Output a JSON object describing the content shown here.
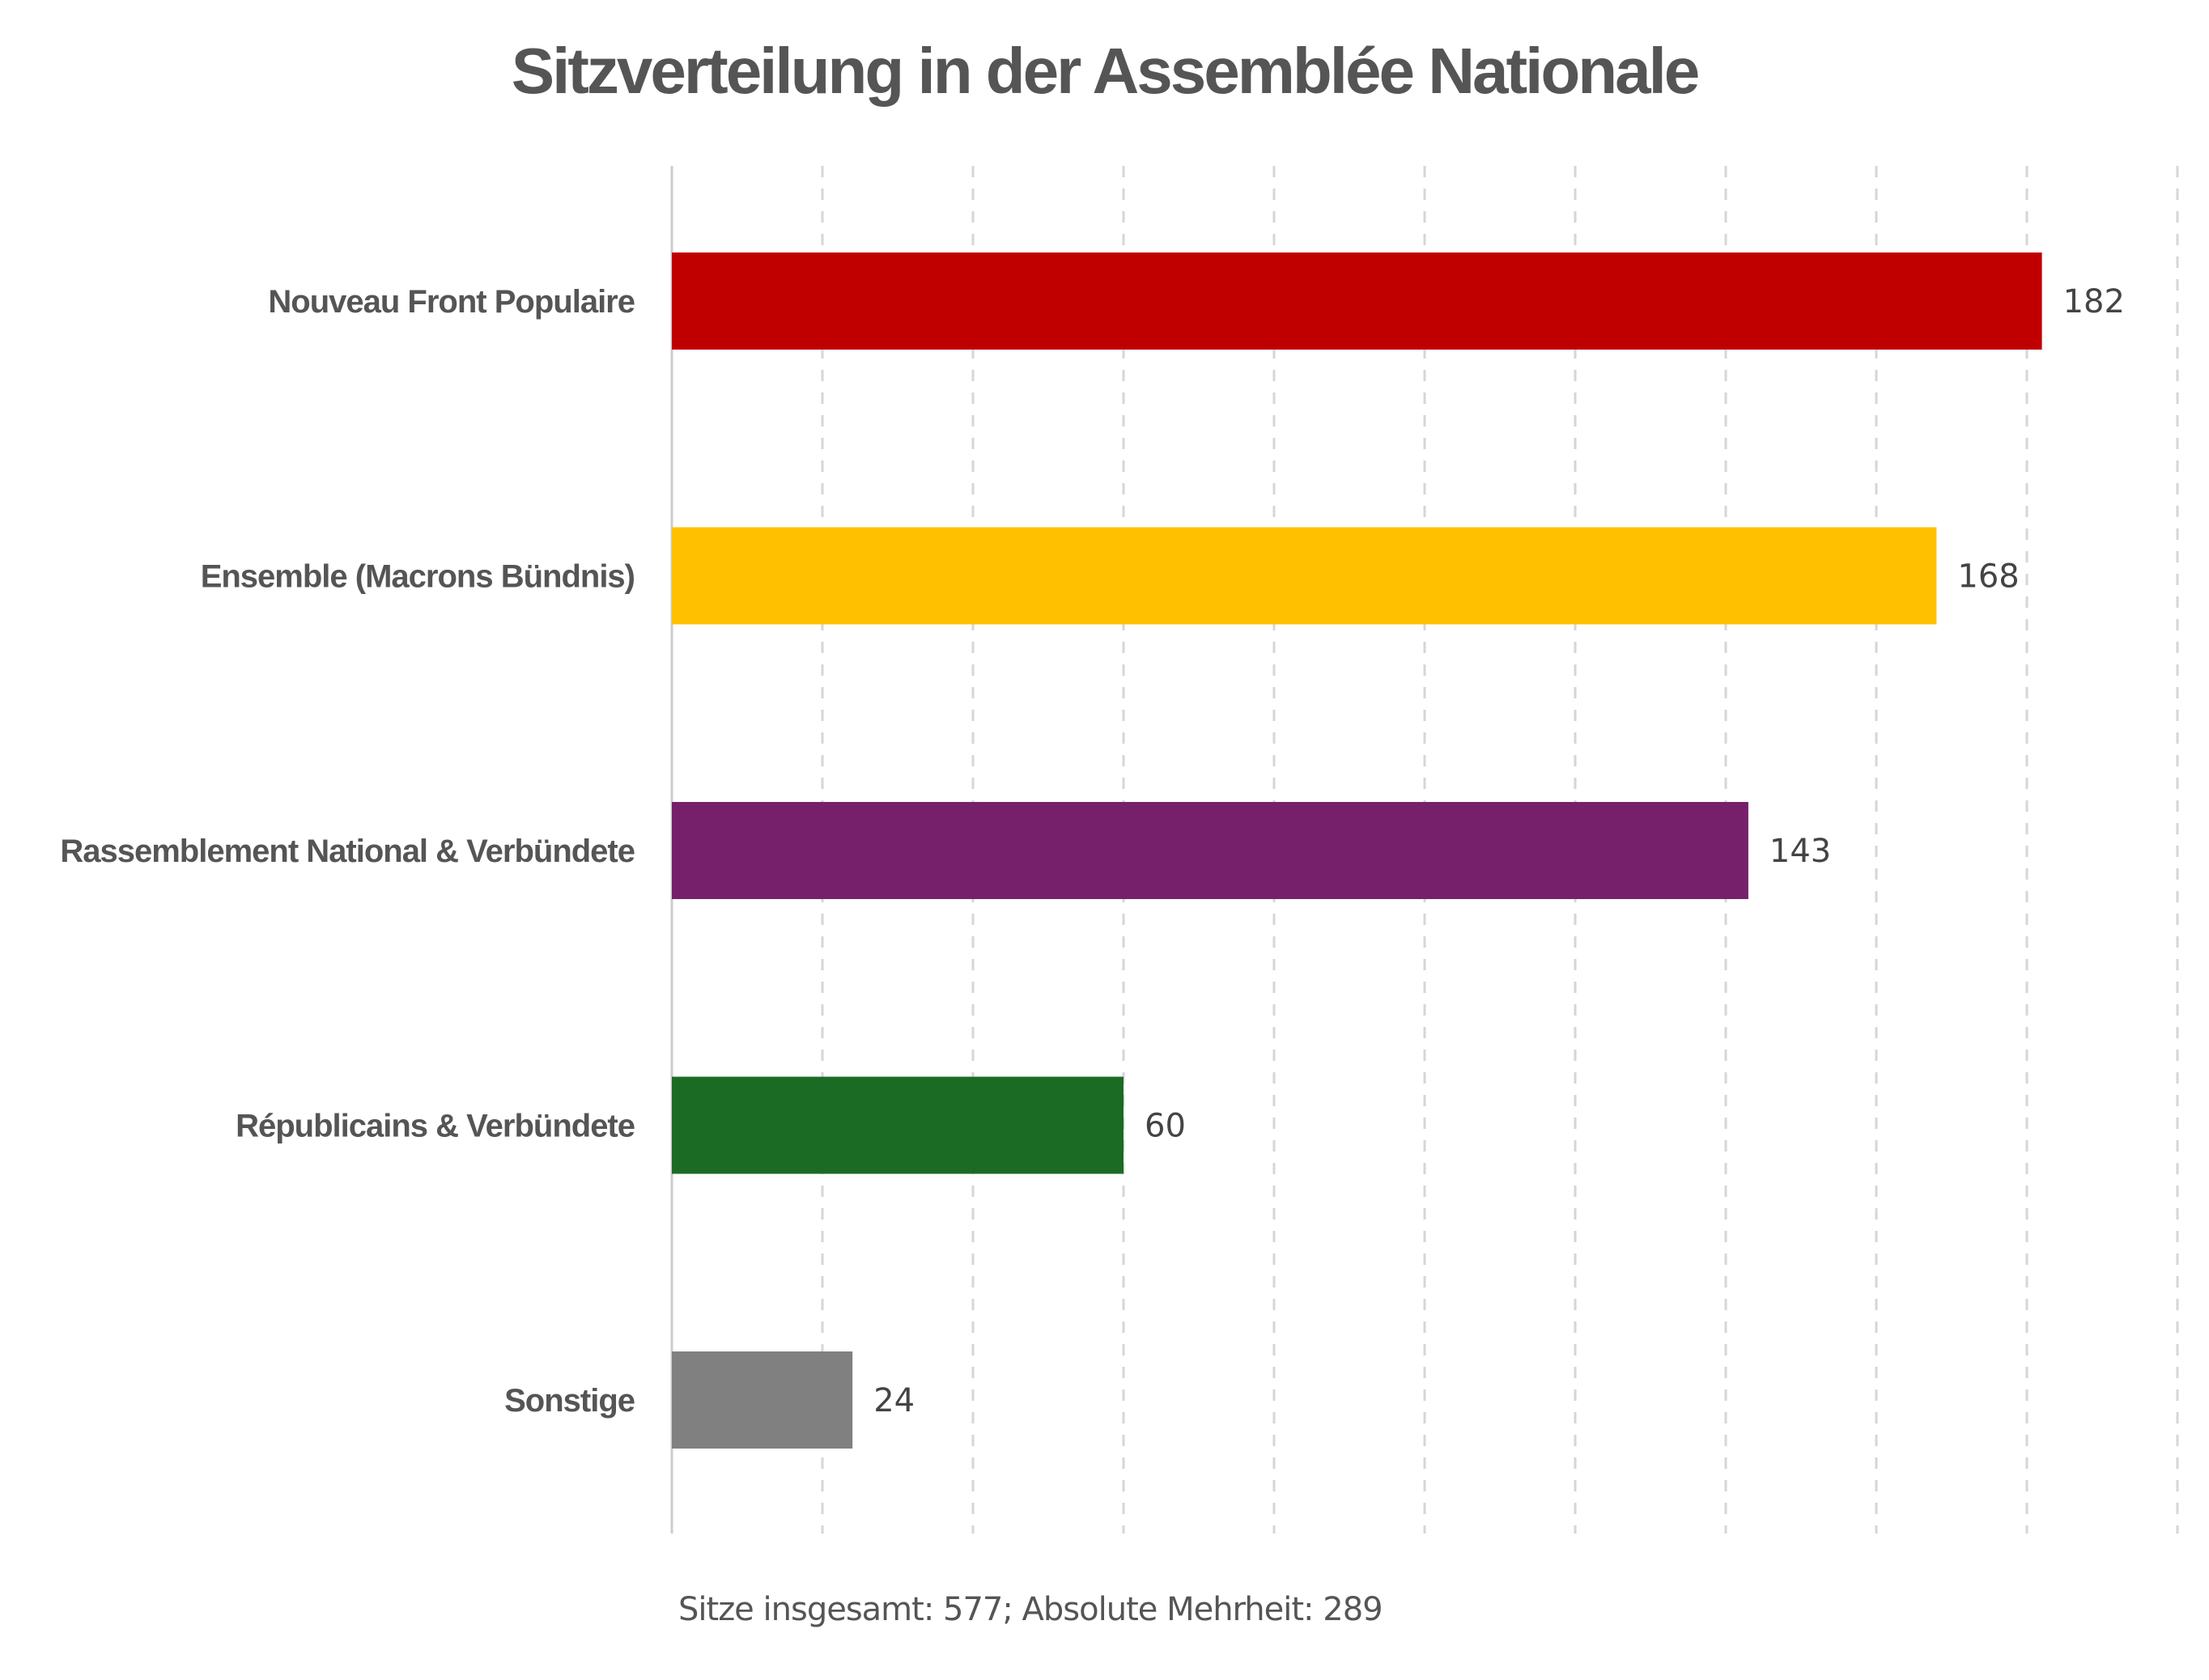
{
  "chart_data": {
    "type": "bar",
    "orientation": "horizontal",
    "title": "Sitzverteilung in der Assemblée Nationale",
    "categories": [
      "Nouveau Front Populaire",
      "Ensemble (Macrons Bündnis)",
      "Rassemblement National & Verbündete",
      "Républicains & Verbündete",
      "Sonstige"
    ],
    "values": [
      182,
      168,
      143,
      60,
      24
    ],
    "colors": [
      "#c00000",
      "#ffc000",
      "#76206b",
      "#1b6b25",
      "#808080"
    ],
    "value_labels": [
      "182",
      "168",
      "143",
      "60",
      "24"
    ],
    "xlim": [
      0,
      200
    ],
    "gridlines": true,
    "gridline_step": 20,
    "note": "Sitze insgesamt: 577; Absolute Mehrheit: 289"
  }
}
